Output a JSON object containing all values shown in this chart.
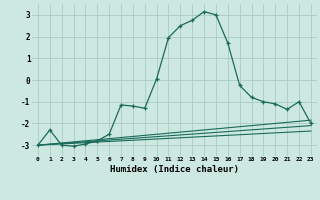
{
  "xlabel": "Humidex (Indice chaleur)",
  "background_color": "#cce8e0",
  "grid_color": "#aaccc4",
  "line_color": "#1a6b5a",
  "xlim": [
    -0.5,
    23.5
  ],
  "ylim": [
    -3.5,
    3.5
  ],
  "yticks": [
    -3,
    -2,
    -1,
    0,
    1,
    2,
    3
  ],
  "xticks": [
    0,
    1,
    2,
    3,
    4,
    5,
    6,
    7,
    8,
    9,
    10,
    11,
    12,
    13,
    14,
    15,
    16,
    17,
    18,
    19,
    20,
    21,
    22,
    23
  ],
  "series1_x": [
    0,
    1,
    2,
    3,
    4,
    5,
    6,
    7,
    8,
    9,
    10,
    11,
    12,
    13,
    14,
    15,
    16,
    17,
    18,
    19,
    20,
    21,
    22,
    23
  ],
  "series1_y": [
    -3.0,
    -2.3,
    -3.0,
    -3.05,
    -2.95,
    -2.8,
    -2.5,
    -1.15,
    -1.2,
    -1.3,
    0.05,
    1.95,
    2.5,
    2.75,
    3.15,
    3.0,
    1.7,
    -0.25,
    -0.8,
    -1.0,
    -1.1,
    -1.35,
    -1.0,
    -2.0
  ],
  "series2_x": [
    0,
    23
  ],
  "series2_y": [
    -3.0,
    -1.85
  ],
  "series3_x": [
    0,
    23
  ],
  "series3_y": [
    -3.0,
    -2.1
  ],
  "series4_x": [
    0,
    23
  ],
  "series4_y": [
    -3.0,
    -2.35
  ]
}
